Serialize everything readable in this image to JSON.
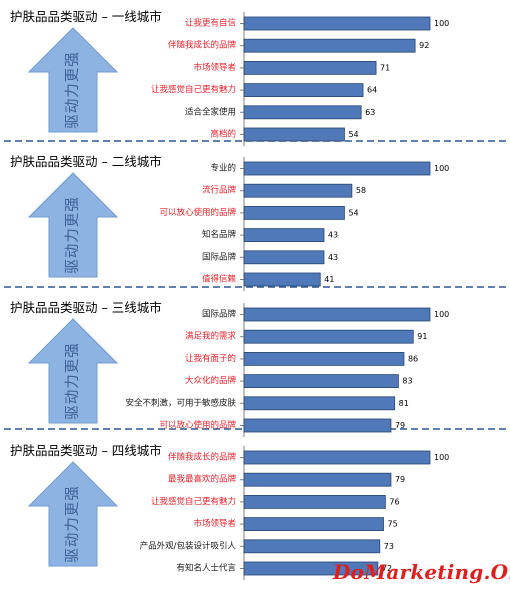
{
  "chart_data": [
    {
      "type": "bar",
      "orientation": "horizontal",
      "title": "护肤品品类驱动 – 一线城市",
      "arrow_label": "驱动力更强",
      "categories": [
        "让我更有自信",
        "伴随我成长的品牌",
        "市场领导者",
        "让我感觉自己更有魅力",
        "适合全家使用",
        "高档的"
      ],
      "values": [
        100,
        92,
        71,
        64,
        63,
        54
      ],
      "highlight": [
        true,
        true,
        true,
        true,
        false,
        true
      ]
    },
    {
      "type": "bar",
      "orientation": "horizontal",
      "title": "护肤品品类驱动 – 二线城市",
      "arrow_label": "驱动力更强",
      "categories": [
        "专业的",
        "流行品牌",
        "可以放心使用的品牌",
        "知名品牌",
        "国际品牌",
        "值得信赖"
      ],
      "values": [
        100,
        58,
        54,
        43,
        43,
        41
      ],
      "highlight": [
        false,
        true,
        true,
        false,
        false,
        true
      ]
    },
    {
      "type": "bar",
      "orientation": "horizontal",
      "title": "护肤品品类驱动 – 三线城市",
      "arrow_label": "驱动力更强",
      "categories": [
        "国际品牌",
        "满足我的需求",
        "让我有面子的",
        "大众化的品牌",
        "安全不刺激，可用于敏感皮肤",
        "可以放心使用的品牌"
      ],
      "values": [
        100,
        91,
        86,
        83,
        81,
        79
      ],
      "highlight": [
        false,
        true,
        true,
        true,
        false,
        true
      ]
    },
    {
      "type": "bar",
      "orientation": "horizontal",
      "title": "护肤品品类驱动 – 四线城市",
      "arrow_label": "驱动力更强",
      "categories": [
        "伴随我成长的品牌",
        "最我最喜欢的品牌",
        "让我感觉自己更有魅力",
        "市场领导者",
        "产品外观/包装设计吸引人",
        "有知名人士代言"
      ],
      "values": [
        100,
        79,
        76,
        75,
        73,
        72
      ],
      "highlight": [
        true,
        true,
        true,
        true,
        false,
        false
      ]
    }
  ],
  "watermark": "DoMarketing.Org",
  "colors": {
    "bar_fill": "#4f79b8",
    "bar_stroke": "#27466f",
    "label_red": "#e8202a",
    "label_black": "#1a1a1a",
    "arrow_fill": "#8db3e2",
    "arrow_text": "#3e5f93",
    "separator": "#2f5597"
  }
}
